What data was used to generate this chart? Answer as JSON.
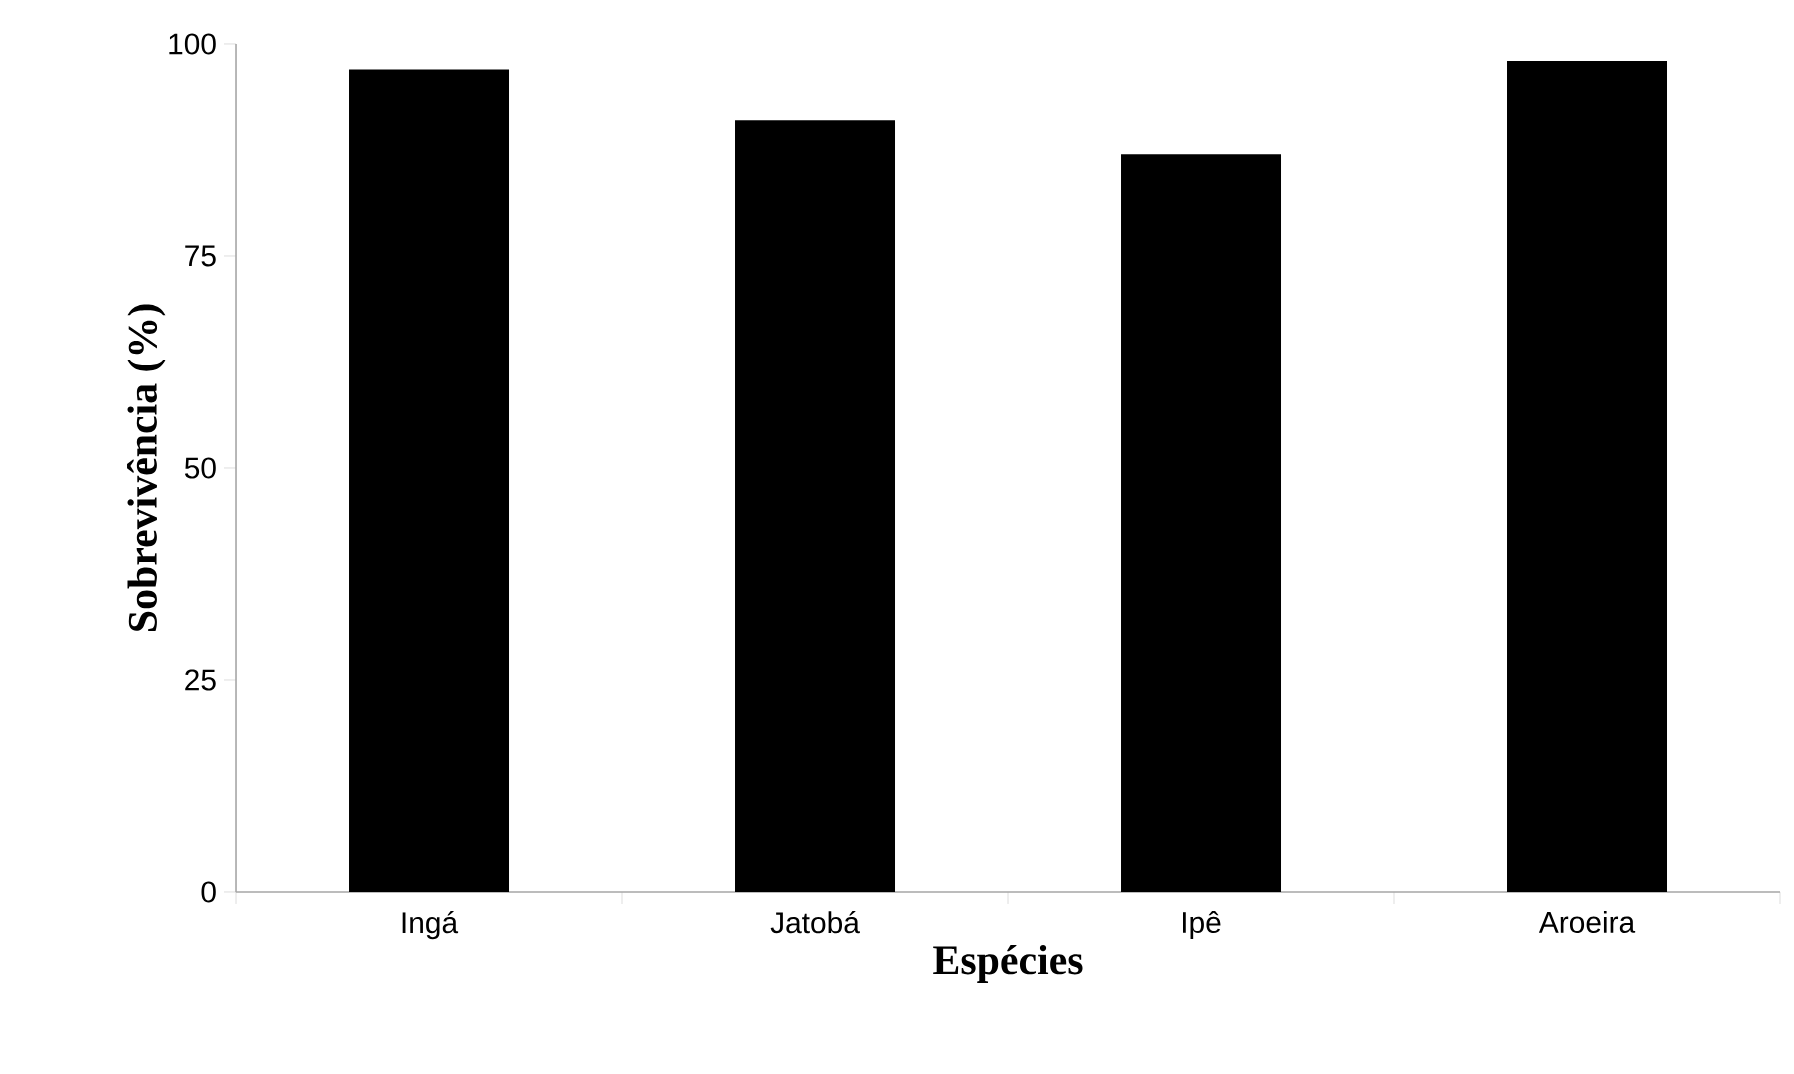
{
  "chart_data": {
    "type": "bar",
    "xlabel": "Espécies",
    "ylabel": "Sobrevivência (%)",
    "categories": [
      "Ingá",
      "Jatobá",
      "Ipê",
      "Aroeira"
    ],
    "values": [
      97,
      91,
      87,
      98
    ],
    "color": "#000000",
    "ylim": [
      0,
      100
    ],
    "yticks": [
      0,
      25,
      50,
      75,
      100
    ]
  }
}
